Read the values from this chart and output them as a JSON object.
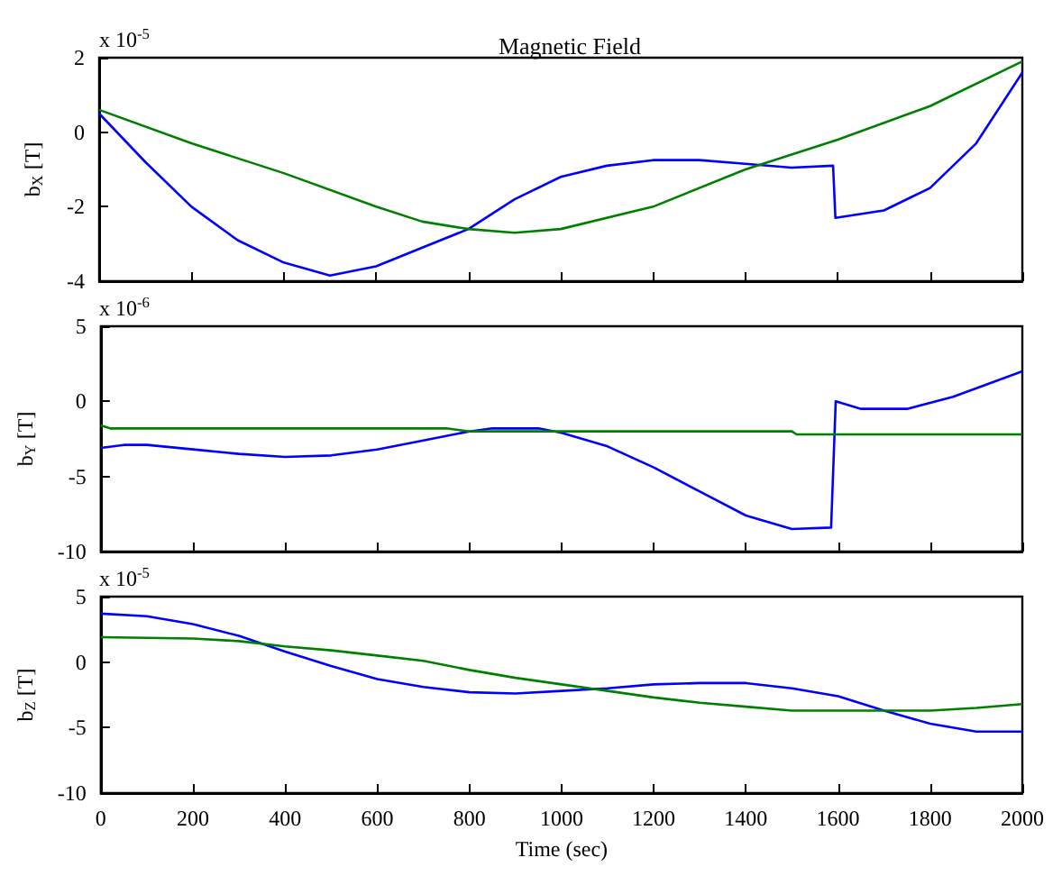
{
  "chart_data": [
    {
      "type": "line",
      "title": "Magnetic Field",
      "ylabel": "b$_{X}$ [T]",
      "annotations": [
        "x 10$^{-5}$"
      ],
      "xlim": [
        0,
        2000
      ],
      "xticks": [
        0,
        200,
        400,
        600,
        800,
        1000,
        1200,
        1400,
        1600,
        1800,
        2000
      ],
      "ylim": [
        -4,
        2
      ],
      "yticks": [
        -4,
        -2,
        0,
        2
      ],
      "tick_labels": "y",
      "grid": false,
      "marker": "none",
      "line_style": "solid",
      "series": [
        {
          "color": "#0000ff",
          "x": [
            0,
            100,
            200,
            300,
            400,
            500,
            600,
            700,
            800,
            900,
            1000,
            1100,
            1200,
            1300,
            1400,
            1500,
            1590,
            1595,
            1700,
            1800,
            1900,
            2000
          ],
          "values": [
            0.5,
            -0.8,
            -2.0,
            -2.9,
            -3.5,
            -3.85,
            -3.6,
            -3.1,
            -2.6,
            -1.8,
            -1.2,
            -0.9,
            -0.75,
            -0.75,
            -0.85,
            -0.95,
            -0.9,
            -2.3,
            -2.1,
            -1.5,
            -0.3,
            1.6
          ]
        },
        {
          "color": "#008000",
          "x": [
            0,
            200,
            400,
            600,
            700,
            800,
            900,
            1000,
            1200,
            1400,
            1600,
            1800,
            2000
          ],
          "values": [
            0.6,
            -0.3,
            -1.1,
            -2.0,
            -2.4,
            -2.6,
            -2.7,
            -2.6,
            -2.0,
            -1.0,
            -0.2,
            0.7,
            1.9
          ]
        }
      ]
    },
    {
      "type": "line",
      "ylabel": "b$_{Y}$ [T]",
      "annotations": [
        "x 10$^{-6}$"
      ],
      "xlim": [
        0,
        2000
      ],
      "xticks": [
        0,
        200,
        400,
        600,
        800,
        1000,
        1200,
        1400,
        1600,
        1800,
        2000
      ],
      "ylim": [
        -10,
        5
      ],
      "yticks": [
        -10,
        -5,
        0,
        5
      ],
      "tick_labels": "y",
      "grid": false,
      "marker": "none",
      "line_style": "solid",
      "series": [
        {
          "color": "#0000ff",
          "x": [
            0,
            50,
            100,
            200,
            300,
            400,
            500,
            600,
            700,
            800,
            850,
            950,
            1000,
            1100,
            1200,
            1300,
            1400,
            1500,
            1585,
            1595,
            1650,
            1750,
            1850,
            2000
          ],
          "values": [
            -3.1,
            -2.9,
            -2.9,
            -3.2,
            -3.5,
            -3.7,
            -3.6,
            -3.2,
            -2.6,
            -2.0,
            -1.8,
            -1.8,
            -2.1,
            -3.0,
            -4.4,
            -6.0,
            -7.6,
            -8.5,
            -8.4,
            0,
            -0.5,
            -0.5,
            0.3,
            2.0
          ]
        },
        {
          "color": "#008000",
          "x": [
            0,
            20,
            750,
            800,
            1500,
            1510,
            2000
          ],
          "values": [
            -1.6,
            -1.8,
            -1.8,
            -2.0,
            -2.0,
            -2.2,
            -2.2
          ]
        }
      ]
    },
    {
      "type": "line",
      "ylabel": "b$_{Z}$ [T]",
      "xlabel": "Time (sec)",
      "annotations": [
        "x 10$^{-5}$"
      ],
      "xlim": [
        0,
        2000
      ],
      "xticks": [
        0,
        200,
        400,
        600,
        800,
        1000,
        1200,
        1400,
        1600,
        1800,
        2000
      ],
      "ylim": [
        -10,
        5
      ],
      "yticks": [
        -10,
        -5,
        0,
        5
      ],
      "grid": false,
      "marker": "none",
      "line_style": "solid",
      "series": [
        {
          "color": "#0000ff",
          "x": [
            0,
            100,
            200,
            300,
            400,
            500,
            600,
            700,
            800,
            900,
            1000,
            1100,
            1200,
            1300,
            1400,
            1500,
            1600,
            1700,
            1800,
            1900,
            2000
          ],
          "values": [
            3.7,
            3.5,
            2.9,
            2.0,
            0.8,
            -0.3,
            -1.3,
            -1.9,
            -2.3,
            -2.4,
            -2.2,
            -2.0,
            -1.7,
            -1.6,
            -1.6,
            -2.0,
            -2.6,
            -3.7,
            -4.7,
            -5.3,
            -5.3
          ]
        },
        {
          "color": "#008000",
          "x": [
            0,
            200,
            300,
            400,
            500,
            600,
            700,
            800,
            900,
            1000,
            1100,
            1200,
            1300,
            1400,
            1500,
            1600,
            1800,
            1900,
            2000
          ],
          "values": [
            1.9,
            1.8,
            1.6,
            1.2,
            0.9,
            0.5,
            0.1,
            -0.6,
            -1.2,
            -1.7,
            -2.2,
            -2.7,
            -3.1,
            -3.4,
            -3.7,
            -3.7,
            -3.7,
            -3.5,
            -3.2
          ]
        }
      ]
    }
  ]
}
